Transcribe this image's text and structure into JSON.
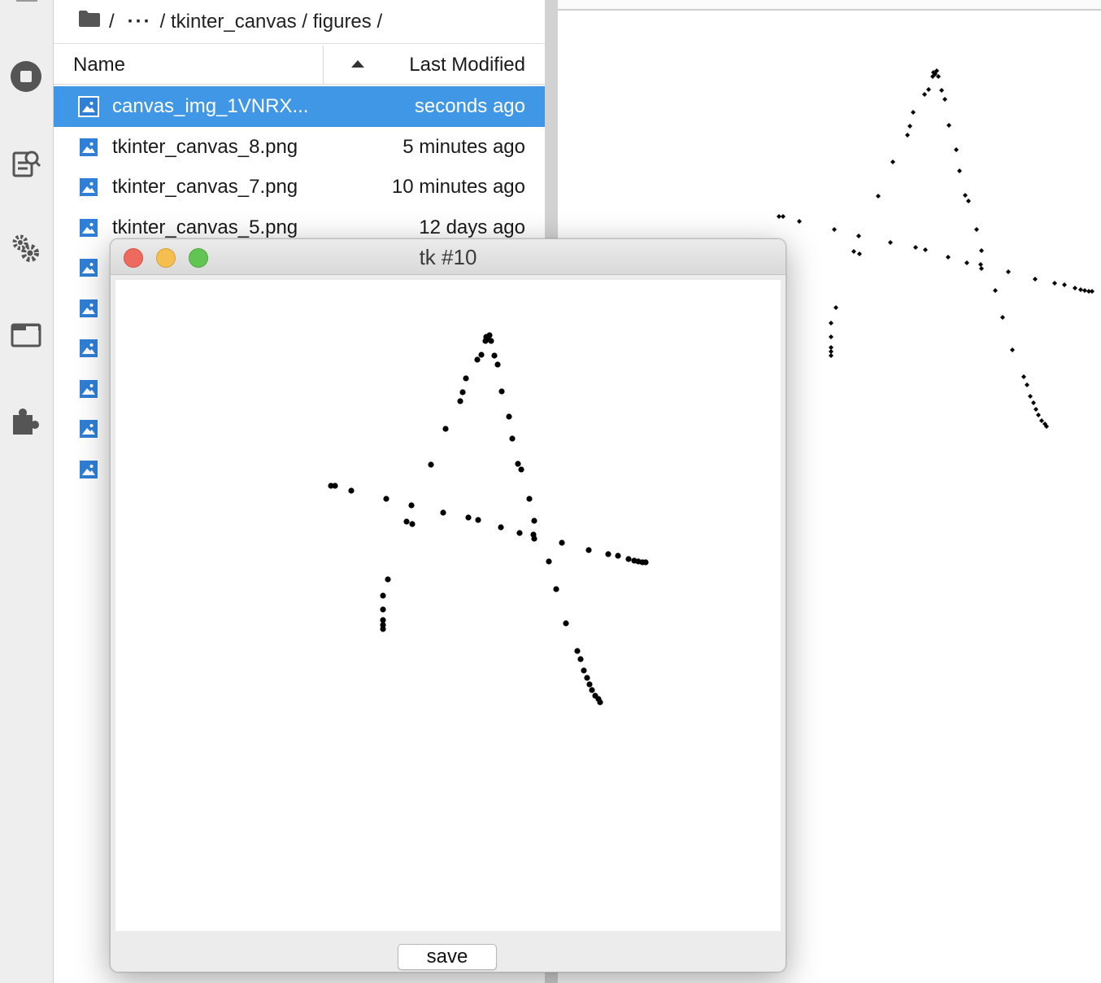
{
  "breadcrumb": {
    "separator": "/",
    "ellipsis": "···",
    "path": "/ tkinter_canvas / figures /"
  },
  "file_browser": {
    "columns": {
      "name": "Name",
      "modified": "Last Modified"
    },
    "files": [
      {
        "name": "canvas_img_1VNRX...",
        "modified": "seconds ago",
        "selected": true
      },
      {
        "name": "tkinter_canvas_8.png",
        "modified": "5 minutes ago",
        "selected": false
      },
      {
        "name": "tkinter_canvas_7.png",
        "modified": "10 minutes ago",
        "selected": false
      },
      {
        "name": "tkinter_canvas_5.png",
        "modified": "12 days ago",
        "selected": false
      },
      {
        "name": "",
        "modified": "",
        "selected": false
      },
      {
        "name": "",
        "modified": "",
        "selected": false
      },
      {
        "name": "",
        "modified": "",
        "selected": false
      },
      {
        "name": "",
        "modified": "",
        "selected": false
      },
      {
        "name": "",
        "modified": "",
        "selected": false
      },
      {
        "name": "",
        "modified": "",
        "selected": false
      }
    ]
  },
  "sidebar_icons": [
    "stop-circle-icon",
    "running-sessions-icon",
    "gears-icon",
    "tabs-icon",
    "extension-puzzle-icon"
  ],
  "tk_window": {
    "title": "tk #10",
    "save_label": "save"
  },
  "colors": {
    "selection": "#3f97e6",
    "file_icon": "#2f7fd6",
    "close": "#ed6a5e",
    "minimize": "#f5bf4f",
    "maximize": "#61c554"
  }
}
